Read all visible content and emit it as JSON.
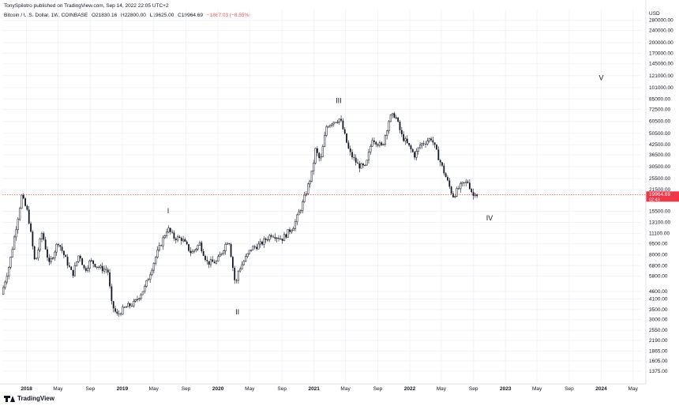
{
  "header": {
    "publisher": "TonySpilotro published on TradingView.com, Sep 14, 2022 22:05 UTC+2",
    "symbol": "Bitcoin / U.S. Dollar, 1W, COINBASE",
    "open": "O21830.16",
    "high": "H22800.00",
    "low": "L19625.00",
    "close": "C19964.69",
    "change": "−1867.03 (−8.55%)"
  },
  "footer": {
    "brand": "TradingView"
  },
  "colors": {
    "candle": "#131722",
    "grid": "#f0f3fa",
    "price_line": "#f23645",
    "price_tag": "#f23645",
    "text": "#131722"
  },
  "chart_data": {
    "type": "candlestick",
    "currency": "USD",
    "scale": "log",
    "x_range": [
      "2017-10-01",
      "2024-06-01"
    ],
    "y_range": [
      1160,
      330000
    ],
    "x_ticks": [
      {
        "label": "2018",
        "date": "2018-01-01",
        "bold": true
      },
      {
        "label": "May",
        "date": "2018-05-01",
        "bold": false
      },
      {
        "label": "Sep",
        "date": "2018-09-01",
        "bold": false
      },
      {
        "label": "2019",
        "date": "2019-01-01",
        "bold": true
      },
      {
        "label": "May",
        "date": "2019-05-01",
        "bold": false
      },
      {
        "label": "Sep",
        "date": "2019-09-01",
        "bold": false
      },
      {
        "label": "2020",
        "date": "2020-01-01",
        "bold": true
      },
      {
        "label": "May",
        "date": "2020-05-01",
        "bold": false
      },
      {
        "label": "Sep",
        "date": "2020-09-01",
        "bold": false
      },
      {
        "label": "2021",
        "date": "2021-01-01",
        "bold": true
      },
      {
        "label": "May",
        "date": "2021-05-01",
        "bold": false
      },
      {
        "label": "Sep",
        "date": "2021-09-01",
        "bold": false
      },
      {
        "label": "2022",
        "date": "2022-01-01",
        "bold": true
      },
      {
        "label": "May",
        "date": "2022-05-01",
        "bold": false
      },
      {
        "label": "Sep",
        "date": "2022-09-01",
        "bold": false
      },
      {
        "label": "2023",
        "date": "2023-01-01",
        "bold": true
      },
      {
        "label": "May",
        "date": "2023-05-01",
        "bold": false
      },
      {
        "label": "Sep",
        "date": "2023-09-01",
        "bold": false
      },
      {
        "label": "2024",
        "date": "2024-01-01",
        "bold": true
      },
      {
        "label": "May",
        "date": "2024-05-01",
        "bold": false
      }
    ],
    "y_ticks": [
      {
        "label": "280000.00",
        "value": 280000
      },
      {
        "label": "240000.00",
        "value": 240000
      },
      {
        "label": "200000.00",
        "value": 200000
      },
      {
        "label": "170000.00",
        "value": 170000
      },
      {
        "label": "145000.00",
        "value": 145000
      },
      {
        "label": "121000.00",
        "value": 121000
      },
      {
        "label": "101000.00",
        "value": 101000
      },
      {
        "label": "85000.00",
        "value": 85000
      },
      {
        "label": "72500.00",
        "value": 72500
      },
      {
        "label": "60500.00",
        "value": 60500
      },
      {
        "label": "50500.00",
        "value": 50500
      },
      {
        "label": "42500.00",
        "value": 42500
      },
      {
        "label": "36500.00",
        "value": 36500
      },
      {
        "label": "30500.00",
        "value": 30500
      },
      {
        "label": "25500.00",
        "value": 25500
      },
      {
        "label": "21500.00",
        "value": 21500
      },
      {
        "label": "15500.00",
        "value": 15500
      },
      {
        "label": "13100.00",
        "value": 13100
      },
      {
        "label": "11100.00",
        "value": 11100
      },
      {
        "label": "9500.00",
        "value": 9500
      },
      {
        "label": "8000.00",
        "value": 8000
      },
      {
        "label": "6800.00",
        "value": 6800
      },
      {
        "label": "5800.00",
        "value": 5800
      },
      {
        "label": "4600.00",
        "value": 4600
      },
      {
        "label": "4100.00",
        "value": 4100
      },
      {
        "label": "3500.00",
        "value": 3500
      },
      {
        "label": "3000.00",
        "value": 3000
      },
      {
        "label": "2550.00",
        "value": 2550
      },
      {
        "label": "2190.00",
        "value": 2190
      },
      {
        "label": "1865.00",
        "value": 1865
      },
      {
        "label": "1605.00",
        "value": 1605
      },
      {
        "label": "1375.00",
        "value": 1375
      }
    ],
    "last_price": {
      "value": 19964.69,
      "label": "19964.69",
      "countdown": "02:49"
    },
    "wave_labels": [
      {
        "text": "I",
        "date": "2019-06-25",
        "price": 15000
      },
      {
        "text": "II",
        "date": "2020-03-15",
        "price": 3250
      },
      {
        "text": "III",
        "date": "2021-04-05",
        "price": 80000
      },
      {
        "text": "IV",
        "date": "2022-11-01",
        "price": 13500
      },
      {
        "text": "V",
        "date": "2024-01-01",
        "price": 113000
      }
    ],
    "price_path": [
      [
        "2017-10-01",
        4400
      ],
      [
        "2017-11-01",
        7000
      ],
      [
        "2017-12-17",
        19500
      ],
      [
        "2018-01-10",
        15000
      ],
      [
        "2018-02-06",
        7000
      ],
      [
        "2018-03-05",
        11300
      ],
      [
        "2018-04-01",
        6900
      ],
      [
        "2018-05-05",
        9800
      ],
      [
        "2018-06-29",
        5900
      ],
      [
        "2018-07-25",
        8200
      ],
      [
        "2018-08-14",
        6300
      ],
      [
        "2018-09-05",
        7300
      ],
      [
        "2018-10-15",
        6500
      ],
      [
        "2018-11-10",
        6400
      ],
      [
        "2018-11-25",
        3800
      ],
      [
        "2018-12-15",
        3200
      ],
      [
        "2019-01-15",
        3600
      ],
      [
        "2019-02-20",
        3850
      ],
      [
        "2019-04-01",
        4900
      ],
      [
        "2019-05-15",
        8000
      ],
      [
        "2019-06-26",
        12000
      ],
      [
        "2019-07-20",
        10400
      ],
      [
        "2019-08-20",
        10200
      ],
      [
        "2019-09-25",
        8200
      ],
      [
        "2019-10-27",
        9500
      ],
      [
        "2019-11-25",
        7100
      ],
      [
        "2019-12-31",
        7200
      ],
      [
        "2020-02-14",
        10300
      ],
      [
        "2020-03-12",
        4900
      ],
      [
        "2020-03-20",
        6200
      ],
      [
        "2020-05-10",
        8800
      ],
      [
        "2020-06-15",
        9400
      ],
      [
        "2020-07-27",
        11000
      ],
      [
        "2020-09-05",
        10200
      ],
      [
        "2020-10-20",
        12500
      ],
      [
        "2020-11-25",
        18000
      ],
      [
        "2020-12-31",
        29000
      ],
      [
        "2021-01-08",
        40000
      ],
      [
        "2021-01-29",
        33000
      ],
      [
        "2021-02-21",
        56000
      ],
      [
        "2021-03-14",
        60000
      ],
      [
        "2021-04-14",
        63000
      ],
      [
        "2021-05-19",
        38000
      ],
      [
        "2021-06-22",
        31000
      ],
      [
        "2021-07-20",
        30000
      ],
      [
        "2021-08-15",
        47000
      ],
      [
        "2021-09-21",
        41000
      ],
      [
        "2021-10-20",
        64000
      ],
      [
        "2021-11-10",
        67000
      ],
      [
        "2021-12-04",
        49000
      ],
      [
        "2022-01-24",
        36000
      ],
      [
        "2022-02-14",
        42500
      ],
      [
        "2022-03-28",
        47000
      ],
      [
        "2022-05-12",
        29000
      ],
      [
        "2022-06-18",
        19500
      ],
      [
        "2022-07-20",
        23000
      ],
      [
        "2022-08-14",
        24200
      ],
      [
        "2022-09-07",
        19000
      ],
      [
        "2022-09-12",
        21500
      ],
      [
        "2022-09-14",
        19964
      ]
    ]
  }
}
